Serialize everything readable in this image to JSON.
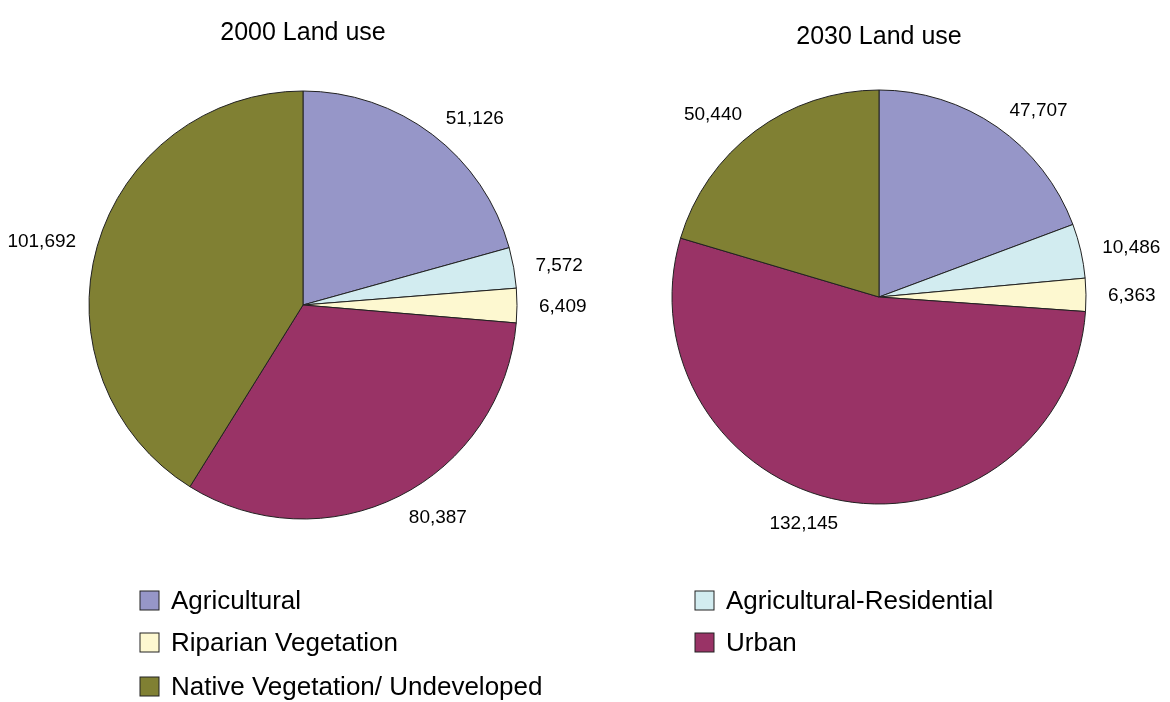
{
  "chart_data": [
    {
      "type": "pie",
      "title": "2000 Land use",
      "categories": [
        "Agricultural",
        "Agricultural-Residential",
        "Riparian Vegetation",
        "Urban",
        "Native Vegetation/ Undeveloped"
      ],
      "values": [
        51126,
        7572,
        6409,
        80387,
        101692
      ],
      "value_labels": [
        "51,126",
        "7,572",
        "6,409",
        "80,387",
        "101,692"
      ],
      "colors": [
        "#9696c8",
        "#d2ecf0",
        "#fdf8d0",
        "#993366",
        "#808033"
      ],
      "legend": "bottom"
    },
    {
      "type": "pie",
      "title": "2030 Land use",
      "categories": [
        null,
        null,
        null,
        null,
        null
      ],
      "values": [
        47707,
        10486,
        6363,
        132145,
        50440
      ],
      "value_labels": [
        "47,707",
        "10,486",
        "6,363",
        "132,145",
        "50,440"
      ],
      "colors": [
        "#9696c8",
        "#d2ecf0",
        "#fdf8d0",
        "#993366",
        "#808033"
      ]
    }
  ]
}
